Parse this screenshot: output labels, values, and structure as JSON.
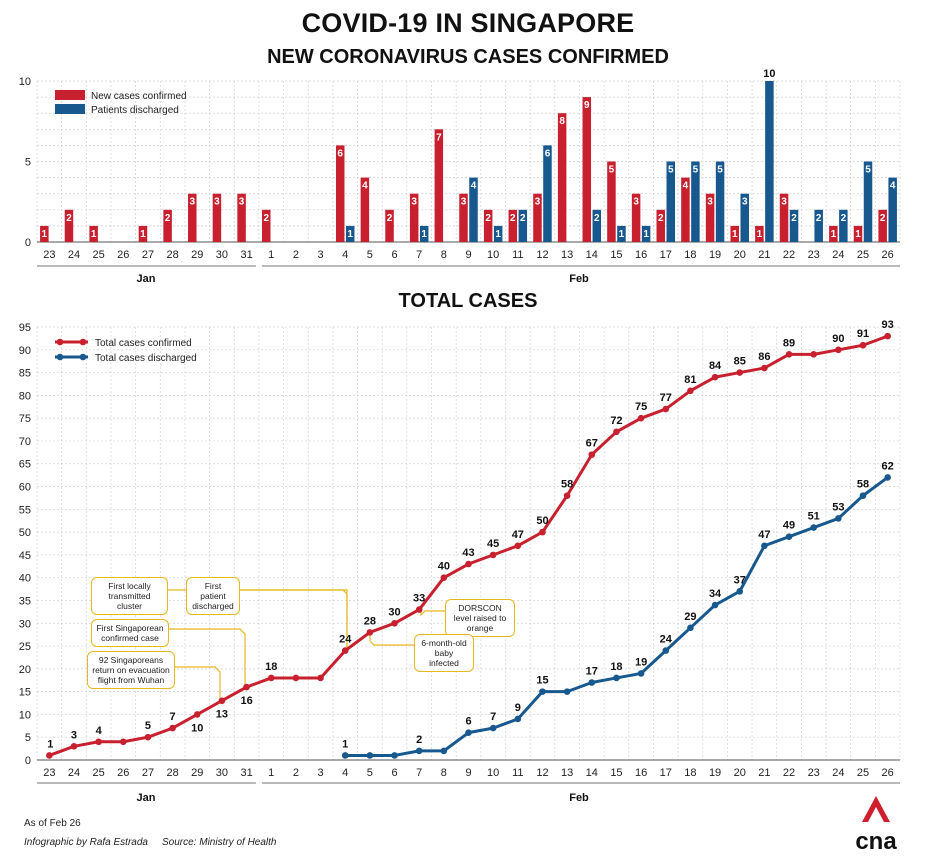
{
  "title": "COVID-19 IN SINGAPORE",
  "subtitle": "NEW CORONAVIRUS CASES CONFIRMED",
  "total_title": "TOTAL CASES",
  "months": {
    "jan": "Jan",
    "feb": "Feb"
  },
  "colors": {
    "confirmed": "#c8202f",
    "discharged": "#17588f",
    "annotation": "#e8b722"
  },
  "chart_data": [
    {
      "type": "bar",
      "categories": [
        "23",
        "24",
        "25",
        "26",
        "27",
        "28",
        "29",
        "30",
        "31",
        "1",
        "2",
        "3",
        "4",
        "5",
        "6",
        "7",
        "8",
        "9",
        "10",
        "11",
        "12",
        "13",
        "14",
        "15",
        "16",
        "17",
        "18",
        "19",
        "20",
        "21",
        "22",
        "23",
        "24",
        "25",
        "26"
      ],
      "series": [
        {
          "name": "New cases confirmed",
          "values": [
            1,
            2,
            1,
            0,
            1,
            2,
            3,
            3,
            3,
            2,
            0,
            0,
            6,
            4,
            2,
            3,
            7,
            3,
            2,
            2,
            3,
            8,
            9,
            5,
            3,
            2,
            4,
            3,
            1,
            1,
            3,
            0,
            1,
            1,
            2
          ]
        },
        {
          "name": "Patients discharged",
          "values": [
            0,
            0,
            0,
            0,
            0,
            0,
            0,
            0,
            0,
            0,
            0,
            0,
            1,
            0,
            0,
            1,
            0,
            4,
            1,
            2,
            6,
            0,
            2,
            1,
            1,
            5,
            5,
            5,
            3,
            10,
            2,
            2,
            2,
            5,
            4
          ]
        }
      ],
      "yticks": [
        0,
        5,
        10
      ],
      "ylim": [
        0,
        10
      ],
      "grid": true,
      "legend": "top-left"
    },
    {
      "type": "line",
      "categories": [
        "23",
        "24",
        "25",
        "26",
        "27",
        "28",
        "29",
        "30",
        "31",
        "1",
        "2",
        "3",
        "4",
        "5",
        "6",
        "7",
        "8",
        "9",
        "10",
        "11",
        "12",
        "13",
        "14",
        "15",
        "16",
        "17",
        "18",
        "19",
        "20",
        "21",
        "22",
        "23",
        "24",
        "25",
        "26"
      ],
      "series": [
        {
          "name": "Total cases confirmed",
          "values": [
            1,
            3,
            4,
            4,
            5,
            7,
            10,
            13,
            16,
            18,
            18,
            18,
            24,
            28,
            30,
            33,
            40,
            43,
            45,
            47,
            50,
            58,
            67,
            72,
            75,
            77,
            81,
            84,
            85,
            86,
            89,
            89,
            90,
            91,
            93
          ]
        },
        {
          "name": "Total cases discharged",
          "values": [
            null,
            null,
            null,
            null,
            null,
            null,
            null,
            null,
            null,
            null,
            null,
            null,
            1,
            1,
            1,
            2,
            2,
            6,
            7,
            9,
            15,
            15,
            17,
            18,
            19,
            24,
            29,
            34,
            37,
            47,
            49,
            51,
            53,
            58,
            62
          ]
        }
      ],
      "confirmed_labels": [
        "1",
        "3",
        "4",
        "",
        "5",
        "7",
        "10",
        "13",
        "16",
        "18",
        "",
        "",
        "24",
        "28",
        "30",
        "33",
        "40",
        "43",
        "45",
        "47",
        "50",
        "58",
        "67",
        "72",
        "75",
        "77",
        "81",
        "84",
        "85",
        "86",
        "89",
        "",
        "90",
        "91",
        "93"
      ],
      "discharged_labels": [
        "",
        "",
        "",
        "",
        "",
        "",
        "",
        "",
        "",
        "",
        "",
        "",
        "1",
        "",
        "",
        "2",
        "",
        "6",
        "7",
        "9",
        "15",
        "",
        "17",
        "18",
        "19",
        "24",
        "29",
        "34",
        "37",
        "47",
        "49",
        "51",
        "53",
        "58",
        "62"
      ],
      "yticks": [
        0,
        5,
        10,
        15,
        20,
        25,
        30,
        35,
        40,
        45,
        50,
        55,
        60,
        65,
        70,
        75,
        80,
        85,
        90,
        95
      ],
      "ylim": [
        0,
        95
      ],
      "grid": true,
      "legend": "top-left",
      "annotations": [
        "First locally transmitted cluster",
        "First patient discharged",
        "First Singaporean confirmed case",
        "92 Singaporeans return on evacuation flight from Wuhan",
        "DORSCON level raised to orange",
        "6-month-old baby infected"
      ]
    }
  ],
  "footer": {
    "asof": "As of Feb 26",
    "credit": "Infographic by Rafa Estrada",
    "source": "Source: Ministry of Health",
    "logo_text": "cna"
  }
}
